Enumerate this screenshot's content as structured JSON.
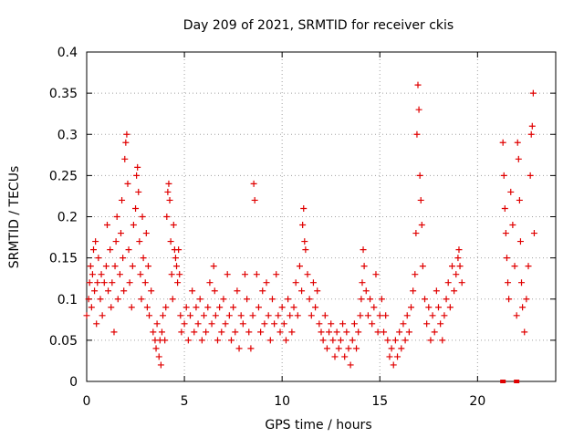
{
  "chart_data": {
    "type": "scatter",
    "title": "Day 209 of 2021, SRMTID for receiver ckis",
    "xlabel": "GPS time / hours",
    "ylabel": "SRMTID / TECUs",
    "xlim": [
      0,
      24
    ],
    "ylim": [
      0,
      0.4
    ],
    "xticks": [
      0,
      5,
      10,
      15,
      20
    ],
    "xtick_labels": [
      "0",
      "5",
      "10",
      "15",
      "20"
    ],
    "yticks": [
      0,
      0.05,
      0.1,
      0.15,
      0.2,
      0.25,
      0.3,
      0.35,
      0.4
    ],
    "ytick_labels": [
      "0",
      "0.05",
      "0.1",
      "0.15",
      "0.2",
      "0.25",
      "0.3",
      "0.35",
      "0.4"
    ],
    "grid": true,
    "marker": "plus",
    "color": "#e00000",
    "series": [
      {
        "name": "SRMTID",
        "points": [
          [
            0.0,
            0.08
          ],
          [
            0.1,
            0.1
          ],
          [
            0.15,
            0.12
          ],
          [
            0.2,
            0.14
          ],
          [
            0.25,
            0.09
          ],
          [
            0.3,
            0.13
          ],
          [
            0.35,
            0.16
          ],
          [
            0.4,
            0.11
          ],
          [
            0.45,
            0.17
          ],
          [
            0.5,
            0.07
          ],
          [
            0.55,
            0.12
          ],
          [
            0.6,
            0.15
          ],
          [
            0.7,
            0.1
          ],
          [
            0.75,
            0.13
          ],
          [
            0.8,
            0.08
          ],
          [
            0.9,
            0.12
          ],
          [
            1.0,
            0.14
          ],
          [
            1.05,
            0.19
          ],
          [
            1.1,
            0.11
          ],
          [
            1.2,
            0.16
          ],
          [
            1.25,
            0.09
          ],
          [
            1.3,
            0.12
          ],
          [
            1.4,
            0.06
          ],
          [
            1.45,
            0.14
          ],
          [
            1.5,
            0.17
          ],
          [
            1.55,
            0.2
          ],
          [
            1.6,
            0.1
          ],
          [
            1.7,
            0.13
          ],
          [
            1.75,
            0.18
          ],
          [
            1.8,
            0.22
          ],
          [
            1.85,
            0.15
          ],
          [
            1.9,
            0.11
          ],
          [
            1.95,
            0.27
          ],
          [
            2.0,
            0.29
          ],
          [
            2.05,
            0.3
          ],
          [
            2.1,
            0.24
          ],
          [
            2.15,
            0.16
          ],
          [
            2.2,
            0.12
          ],
          [
            2.3,
            0.09
          ],
          [
            2.35,
            0.14
          ],
          [
            2.4,
            0.19
          ],
          [
            2.5,
            0.21
          ],
          [
            2.55,
            0.25
          ],
          [
            2.6,
            0.26
          ],
          [
            2.65,
            0.23
          ],
          [
            2.7,
            0.17
          ],
          [
            2.75,
            0.13
          ],
          [
            2.8,
            0.1
          ],
          [
            2.85,
            0.2
          ],
          [
            2.9,
            0.15
          ],
          [
            3.0,
            0.12
          ],
          [
            3.05,
            0.18
          ],
          [
            3.1,
            0.09
          ],
          [
            3.15,
            0.14
          ],
          [
            3.2,
            0.08
          ],
          [
            3.3,
            0.11
          ],
          [
            3.4,
            0.06
          ],
          [
            3.5,
            0.05
          ],
          [
            3.55,
            0.04
          ],
          [
            3.6,
            0.07
          ],
          [
            3.7,
            0.03
          ],
          [
            3.75,
            0.05
          ],
          [
            3.8,
            0.02
          ],
          [
            3.85,
            0.06
          ],
          [
            3.9,
            0.08
          ],
          [
            4.0,
            0.05
          ],
          [
            4.05,
            0.09
          ],
          [
            4.1,
            0.2
          ],
          [
            4.15,
            0.23
          ],
          [
            4.2,
            0.24
          ],
          [
            4.25,
            0.22
          ],
          [
            4.3,
            0.17
          ],
          [
            4.35,
            0.13
          ],
          [
            4.4,
            0.1
          ],
          [
            4.45,
            0.19
          ],
          [
            4.5,
            0.16
          ],
          [
            4.55,
            0.15
          ],
          [
            4.6,
            0.14
          ],
          [
            4.65,
            0.12
          ],
          [
            4.7,
            0.16
          ],
          [
            4.75,
            0.13
          ],
          [
            4.8,
            0.08
          ],
          [
            4.85,
            0.06
          ],
          [
            5.0,
            0.07
          ],
          [
            5.1,
            0.09
          ],
          [
            5.2,
            0.05
          ],
          [
            5.3,
            0.08
          ],
          [
            5.4,
            0.11
          ],
          [
            5.5,
            0.06
          ],
          [
            5.6,
            0.09
          ],
          [
            5.7,
            0.07
          ],
          [
            5.8,
            0.1
          ],
          [
            5.9,
            0.05
          ],
          [
            6.0,
            0.08
          ],
          [
            6.1,
            0.06
          ],
          [
            6.2,
            0.09
          ],
          [
            6.3,
            0.12
          ],
          [
            6.4,
            0.07
          ],
          [
            6.5,
            0.14
          ],
          [
            6.55,
            0.11
          ],
          [
            6.6,
            0.08
          ],
          [
            6.7,
            0.05
          ],
          [
            6.8,
            0.09
          ],
          [
            6.9,
            0.06
          ],
          [
            7.0,
            0.1
          ],
          [
            7.1,
            0.07
          ],
          [
            7.2,
            0.13
          ],
          [
            7.3,
            0.08
          ],
          [
            7.4,
            0.05
          ],
          [
            7.5,
            0.09
          ],
          [
            7.6,
            0.06
          ],
          [
            7.7,
            0.11
          ],
          [
            7.8,
            0.04
          ],
          [
            7.9,
            0.08
          ],
          [
            8.0,
            0.07
          ],
          [
            8.1,
            0.13
          ],
          [
            8.2,
            0.1
          ],
          [
            8.3,
            0.06
          ],
          [
            8.4,
            0.04
          ],
          [
            8.5,
            0.08
          ],
          [
            8.55,
            0.24
          ],
          [
            8.6,
            0.22
          ],
          [
            8.7,
            0.13
          ],
          [
            8.8,
            0.09
          ],
          [
            8.9,
            0.06
          ],
          [
            9.0,
            0.11
          ],
          [
            9.1,
            0.07
          ],
          [
            9.2,
            0.12
          ],
          [
            9.3,
            0.08
          ],
          [
            9.4,
            0.05
          ],
          [
            9.5,
            0.1
          ],
          [
            9.6,
            0.07
          ],
          [
            9.7,
            0.13
          ],
          [
            9.8,
            0.08
          ],
          [
            9.9,
            0.06
          ],
          [
            10.0,
            0.09
          ],
          [
            10.1,
            0.07
          ],
          [
            10.2,
            0.05
          ],
          [
            10.3,
            0.1
          ],
          [
            10.4,
            0.08
          ],
          [
            10.5,
            0.06
          ],
          [
            10.6,
            0.09
          ],
          [
            10.7,
            0.12
          ],
          [
            10.8,
            0.08
          ],
          [
            10.9,
            0.14
          ],
          [
            11.0,
            0.11
          ],
          [
            11.05,
            0.19
          ],
          [
            11.1,
            0.21
          ],
          [
            11.15,
            0.17
          ],
          [
            11.2,
            0.16
          ],
          [
            11.3,
            0.13
          ],
          [
            11.4,
            0.1
          ],
          [
            11.5,
            0.08
          ],
          [
            11.6,
            0.12
          ],
          [
            11.7,
            0.09
          ],
          [
            11.8,
            0.11
          ],
          [
            11.9,
            0.07
          ],
          [
            12.0,
            0.06
          ],
          [
            12.1,
            0.05
          ],
          [
            12.2,
            0.08
          ],
          [
            12.3,
            0.04
          ],
          [
            12.4,
            0.06
          ],
          [
            12.5,
            0.07
          ],
          [
            12.6,
            0.05
          ],
          [
            12.7,
            0.03
          ],
          [
            12.8,
            0.06
          ],
          [
            12.9,
            0.04
          ],
          [
            13.0,
            0.05
          ],
          [
            13.1,
            0.07
          ],
          [
            13.2,
            0.03
          ],
          [
            13.3,
            0.06
          ],
          [
            13.4,
            0.04
          ],
          [
            13.5,
            0.02
          ],
          [
            13.6,
            0.05
          ],
          [
            13.7,
            0.07
          ],
          [
            13.8,
            0.04
          ],
          [
            13.9,
            0.06
          ],
          [
            14.0,
            0.08
          ],
          [
            14.05,
            0.1
          ],
          [
            14.1,
            0.12
          ],
          [
            14.15,
            0.16
          ],
          [
            14.2,
            0.14
          ],
          [
            14.3,
            0.11
          ],
          [
            14.4,
            0.08
          ],
          [
            14.5,
            0.1
          ],
          [
            14.6,
            0.07
          ],
          [
            14.7,
            0.09
          ],
          [
            14.8,
            0.13
          ],
          [
            14.9,
            0.06
          ],
          [
            15.0,
            0.08
          ],
          [
            15.1,
            0.1
          ],
          [
            15.2,
            0.06
          ],
          [
            15.3,
            0.08
          ],
          [
            15.4,
            0.05
          ],
          [
            15.5,
            0.03
          ],
          [
            15.6,
            0.04
          ],
          [
            15.7,
            0.02
          ],
          [
            15.8,
            0.05
          ],
          [
            15.9,
            0.03
          ],
          [
            16.0,
            0.06
          ],
          [
            16.1,
            0.04
          ],
          [
            16.2,
            0.07
          ],
          [
            16.3,
            0.05
          ],
          [
            16.4,
            0.08
          ],
          [
            16.5,
            0.06
          ],
          [
            16.6,
            0.09
          ],
          [
            16.7,
            0.11
          ],
          [
            16.8,
            0.13
          ],
          [
            16.85,
            0.18
          ],
          [
            16.9,
            0.3
          ],
          [
            16.95,
            0.36
          ],
          [
            17.0,
            0.33
          ],
          [
            17.05,
            0.25
          ],
          [
            17.1,
            0.22
          ],
          [
            17.15,
            0.19
          ],
          [
            17.2,
            0.14
          ],
          [
            17.3,
            0.1
          ],
          [
            17.4,
            0.07
          ],
          [
            17.5,
            0.09
          ],
          [
            17.6,
            0.05
          ],
          [
            17.7,
            0.08
          ],
          [
            17.8,
            0.06
          ],
          [
            17.9,
            0.11
          ],
          [
            18.0,
            0.09
          ],
          [
            18.1,
            0.07
          ],
          [
            18.2,
            0.05
          ],
          [
            18.3,
            0.08
          ],
          [
            18.4,
            0.1
          ],
          [
            18.5,
            0.12
          ],
          [
            18.6,
            0.09
          ],
          [
            18.7,
            0.14
          ],
          [
            18.8,
            0.11
          ],
          [
            18.9,
            0.13
          ],
          [
            19.0,
            0.15
          ],
          [
            19.05,
            0.16
          ],
          [
            19.1,
            0.14
          ],
          [
            19.2,
            0.12
          ],
          [
            21.3,
            0.29
          ],
          [
            21.35,
            0.25
          ],
          [
            21.4,
            0.21
          ],
          [
            21.45,
            0.18
          ],
          [
            21.5,
            0.15
          ],
          [
            21.55,
            0.12
          ],
          [
            21.6,
            0.1
          ],
          [
            21.7,
            0.23
          ],
          [
            21.8,
            0.19
          ],
          [
            21.9,
            0.14
          ],
          [
            22.0,
            0.08
          ],
          [
            22.05,
            0.29
          ],
          [
            22.1,
            0.27
          ],
          [
            22.15,
            0.22
          ],
          [
            22.2,
            0.17
          ],
          [
            22.25,
            0.12
          ],
          [
            22.3,
            0.09
          ],
          [
            22.4,
            0.06
          ],
          [
            22.5,
            0.1
          ],
          [
            22.6,
            0.14
          ],
          [
            22.7,
            0.25
          ],
          [
            22.75,
            0.3
          ],
          [
            22.8,
            0.31
          ],
          [
            22.85,
            0.35
          ],
          [
            22.9,
            0.18
          ]
        ]
      }
    ],
    "zero_markers": [
      [
        21.3,
        0.0
      ],
      [
        22.0,
        0.0
      ]
    ]
  }
}
